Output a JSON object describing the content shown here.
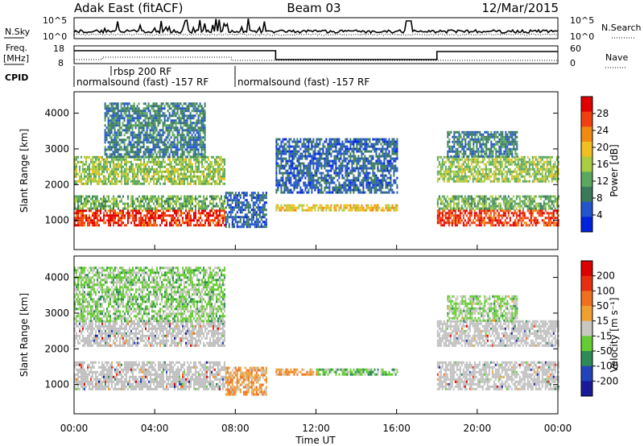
{
  "header": {
    "station": "Adak East (fitACF)",
    "beam": "Beam 03",
    "date": "12/Mar/2015"
  },
  "top_panels": {
    "nsky_label": "N.Sky",
    "nsearch_label": "N.Search",
    "freq_label": "Freq.",
    "freq_unit": "[MHz]",
    "nave_label": "Nave",
    "cpid_label": "CPID",
    "noise_ticks": [
      "10^5",
      "10^0"
    ],
    "freq_ticks": [
      "18",
      "8"
    ],
    "nave_ticks": [
      "60",
      "0"
    ],
    "programs": [
      {
        "name": "normalsound (fast) -157 RF",
        "start_hour": 0
      },
      {
        "name": "rbsp 200 RF",
        "start_hour": 1.33
      },
      {
        "name": "normalsound (fast) -157 RF",
        "start_hour": 7.33
      }
    ]
  },
  "x_axis": {
    "label": "Time UT",
    "ticks": [
      "00:00",
      "04:00",
      "08:00",
      "12:00",
      "16:00",
      "20:00",
      "00:00"
    ]
  },
  "colors": {
    "power": [
      "#0022dd",
      "#2255cc",
      "#3a7a5a",
      "#5aa860",
      "#aacc40",
      "#f0c020",
      "#f08a10",
      "#f04010",
      "#e00000"
    ],
    "velocity": [
      "#1a1a99",
      "#2244bb",
      "#2e8b57",
      "#66cc33",
      "#c8c8c0",
      "#f0a030",
      "#f07020",
      "#e83010",
      "#dd0000"
    ],
    "ground": "#c0c0c0"
  },
  "chart_data": [
    {
      "type": "heatmap",
      "title": "",
      "xlabel": "Time UT",
      "ylabel": "Slant Range [km]",
      "xlim": [
        0,
        24
      ],
      "ylim": [
        180,
        4600
      ],
      "yticks": [
        1000,
        2000,
        3000,
        4000
      ],
      "colorbar": {
        "label": "Power [dB]",
        "ticks": [
          28,
          24,
          20,
          16,
          12,
          8,
          4
        ],
        "range": [
          0,
          30
        ]
      },
      "regions": [
        {
          "t": [
            0,
            7.5
          ],
          "range": [
            850,
            1300
          ],
          "value": 26
        },
        {
          "t": [
            0,
            7.5
          ],
          "range": [
            1300,
            1700
          ],
          "value": 12
        },
        {
          "t": [
            0,
            7.5
          ],
          "range": [
            2000,
            2800
          ],
          "value": 14
        },
        {
          "t": [
            1.5,
            6.5
          ],
          "range": [
            2800,
            4300
          ],
          "value": 8
        },
        {
          "t": [
            7.5,
            9.5
          ],
          "range": [
            800,
            1800
          ],
          "value": 6
        },
        {
          "t": [
            10,
            16
          ],
          "range": [
            1250,
            1450
          ],
          "value": 18
        },
        {
          "t": [
            10,
            16
          ],
          "range": [
            1800,
            3300
          ],
          "value": 6
        },
        {
          "t": [
            18,
            24
          ],
          "range": [
            850,
            1300
          ],
          "value": 26
        },
        {
          "t": [
            18,
            24
          ],
          "range": [
            1300,
            1700
          ],
          "value": 12
        },
        {
          "t": [
            18,
            24
          ],
          "range": [
            2100,
            2800
          ],
          "value": 14
        },
        {
          "t": [
            18.5,
            22
          ],
          "range": [
            2800,
            3500
          ],
          "value": 8
        }
      ]
    },
    {
      "type": "heatmap",
      "title": "",
      "xlabel": "Time UT",
      "ylabel": "Slant Range [km]",
      "xlim": [
        0,
        24
      ],
      "ylim": [
        180,
        4600
      ],
      "yticks": [
        1000,
        2000,
        3000,
        4000
      ],
      "colorbar": {
        "label": "Velocity [m s⁻¹]",
        "ticks": [
          200,
          100,
          50,
          15,
          -15,
          -50,
          -100,
          -200
        ],
        "range": [
          -250,
          250
        ]
      },
      "regions": [
        {
          "t": [
            0,
            7.5
          ],
          "range": [
            850,
            1650
          ],
          "value": 0,
          "ground": true
        },
        {
          "t": [
            0,
            7.5
          ],
          "range": [
            2100,
            2800
          ],
          "value": 0,
          "ground": true
        },
        {
          "t": [
            0,
            7.5
          ],
          "range": [
            2800,
            4300
          ],
          "value": -40
        },
        {
          "t": [
            7.5,
            9.5
          ],
          "range": [
            750,
            1500
          ],
          "value": 60
        },
        {
          "t": [
            10,
            12
          ],
          "range": [
            1250,
            1450
          ],
          "value": 60
        },
        {
          "t": [
            12,
            16
          ],
          "range": [
            1250,
            1450
          ],
          "value": -60
        },
        {
          "t": [
            18,
            24
          ],
          "range": [
            850,
            1650
          ],
          "value": 0,
          "ground": true
        },
        {
          "t": [
            18,
            24
          ],
          "range": [
            2100,
            2800
          ],
          "value": 0,
          "ground": true
        },
        {
          "t": [
            18.5,
            22
          ],
          "range": [
            2800,
            3500
          ],
          "value": -30
        }
      ]
    }
  ]
}
